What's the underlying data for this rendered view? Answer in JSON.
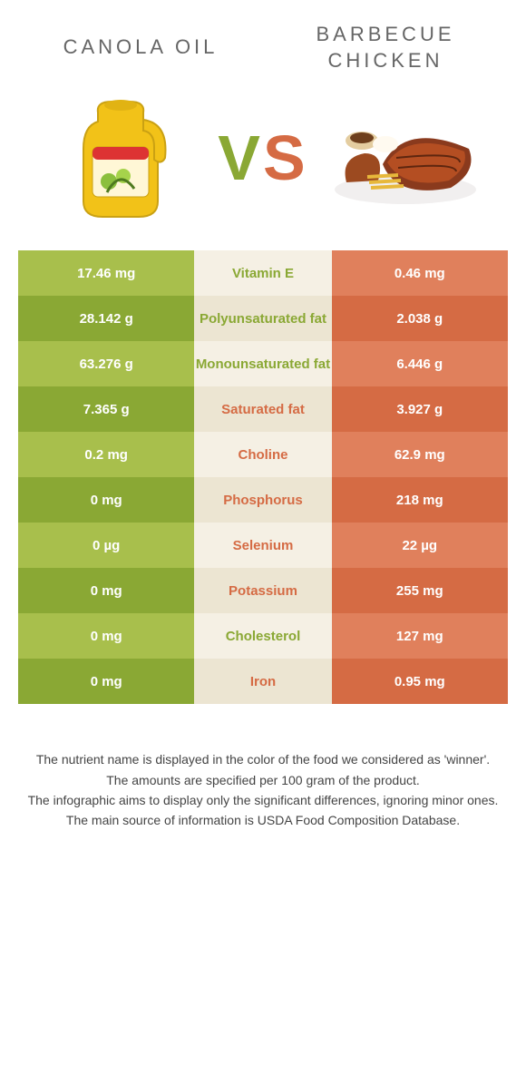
{
  "foods": {
    "left": {
      "name": "CANOLA OIL",
      "color_light": "#a8bf4c",
      "color_dark": "#8aa834"
    },
    "right": {
      "name": "BARBECUE CHICKEN",
      "color_light": "#e0805c",
      "color_dark": "#d56b44"
    }
  },
  "vs": {
    "v_color": "#8aa834",
    "s_color": "#d56b44"
  },
  "row_colors": {
    "mid_light": "#f5f0e4",
    "mid_dark": "#ece5d2",
    "green_text": "#8aa834",
    "orange_text": "#d56b44"
  },
  "rows": [
    {
      "left": "17.46 mg",
      "label": "Vitamin E",
      "right": "0.46 mg",
      "winner": "left"
    },
    {
      "left": "28.142 g",
      "label": "Polyunsaturated fat",
      "right": "2.038 g",
      "winner": "left"
    },
    {
      "left": "63.276 g",
      "label": "Monounsaturated fat",
      "right": "6.446 g",
      "winner": "left"
    },
    {
      "left": "7.365 g",
      "label": "Saturated fat",
      "right": "3.927 g",
      "winner": "right"
    },
    {
      "left": "0.2 mg",
      "label": "Choline",
      "right": "62.9 mg",
      "winner": "right"
    },
    {
      "left": "0 mg",
      "label": "Phosphorus",
      "right": "218 mg",
      "winner": "right"
    },
    {
      "left": "0 µg",
      "label": "Selenium",
      "right": "22 µg",
      "winner": "right"
    },
    {
      "left": "0 mg",
      "label": "Potassium",
      "right": "255 mg",
      "winner": "right"
    },
    {
      "left": "0 mg",
      "label": "Cholesterol",
      "right": "127 mg",
      "winner": "left"
    },
    {
      "left": "0 mg",
      "label": "Iron",
      "right": "0.95 mg",
      "winner": "right"
    }
  ],
  "footer": [
    "The nutrient name is displayed in the color of the food we considered as 'winner'.",
    "The amounts are specified per 100 gram of the product.",
    "The infographic aims to display only the significant differences, ignoring minor ones.",
    "The main source of information is USDA Food Composition Database."
  ]
}
